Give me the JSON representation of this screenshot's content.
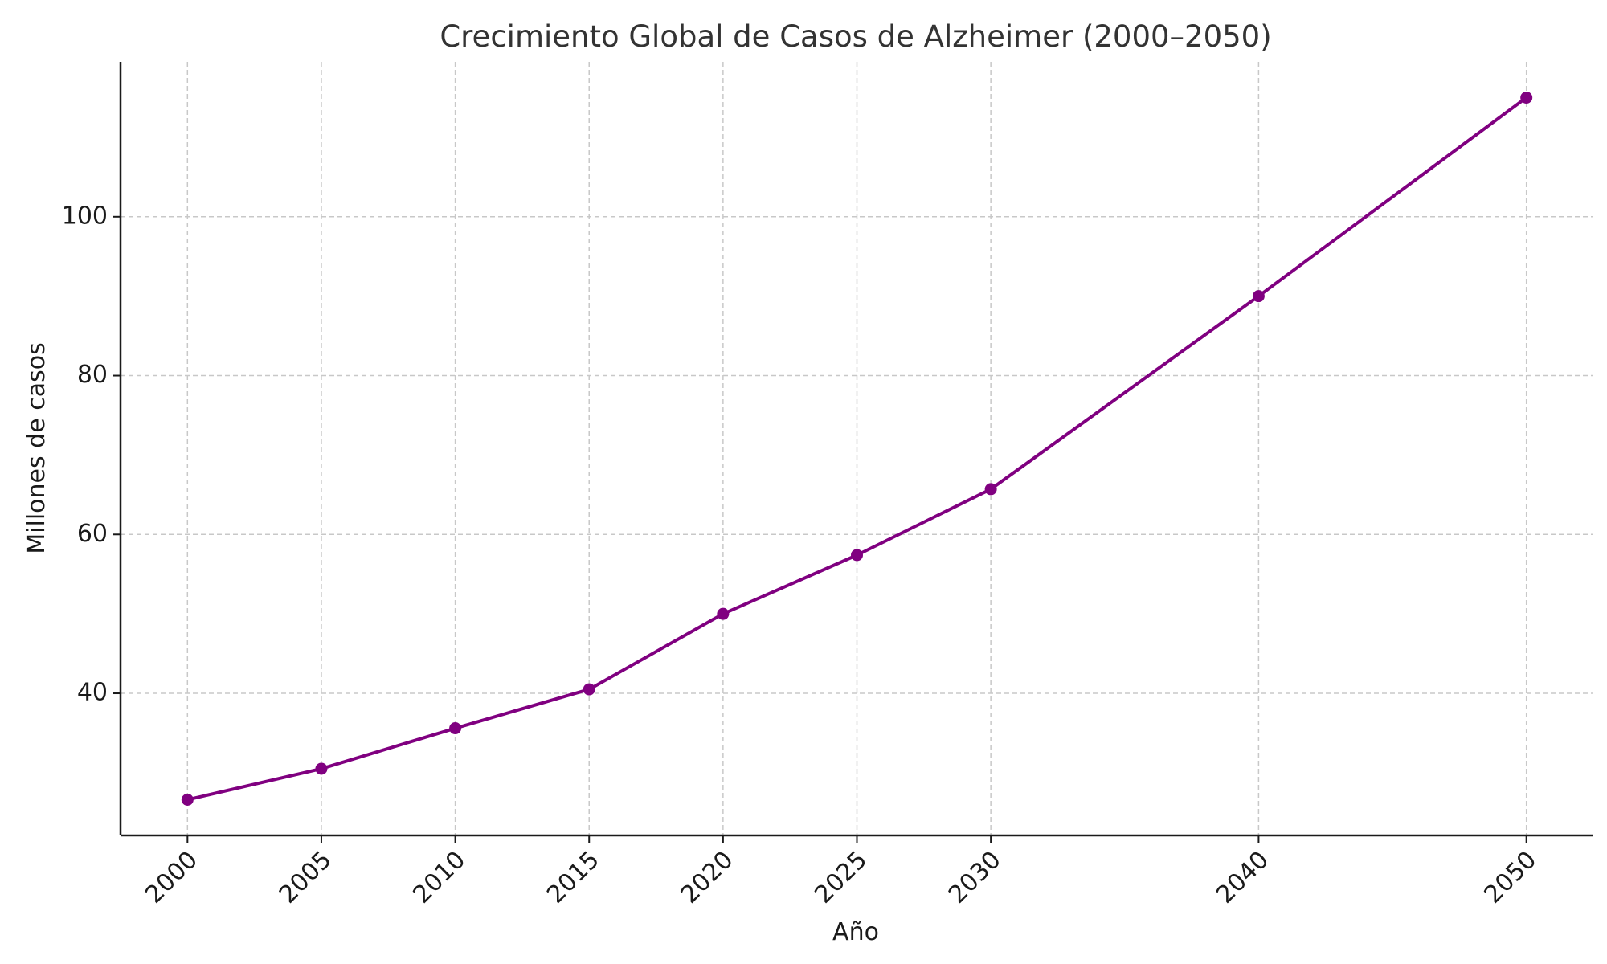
{
  "chart_data": {
    "type": "line",
    "title": "Crecimiento Global de Casos de Alzheimer (2000–2050)",
    "xlabel": "Año",
    "ylabel": "Millones de casos",
    "x": [
      2000,
      2005,
      2010,
      2015,
      2020,
      2025,
      2030,
      2040,
      2050
    ],
    "x_tick_labels": [
      "2000",
      "2005",
      "2010",
      "2015",
      "2020",
      "2025",
      "2030",
      "2040",
      "2050"
    ],
    "series": [
      {
        "values": [
          26.6,
          30.5,
          35.6,
          40.5,
          50,
          57.4,
          65.7,
          90,
          115
        ]
      }
    ],
    "y_ticks": [
      40,
      60,
      80,
      100
    ],
    "y_tick_labels": [
      "40",
      "60",
      "80",
      "100"
    ],
    "xlim": [
      1997.5,
      2052.5
    ],
    "ylim": [
      22.1,
      119.5
    ],
    "grid": true,
    "line_color": "#800080"
  }
}
